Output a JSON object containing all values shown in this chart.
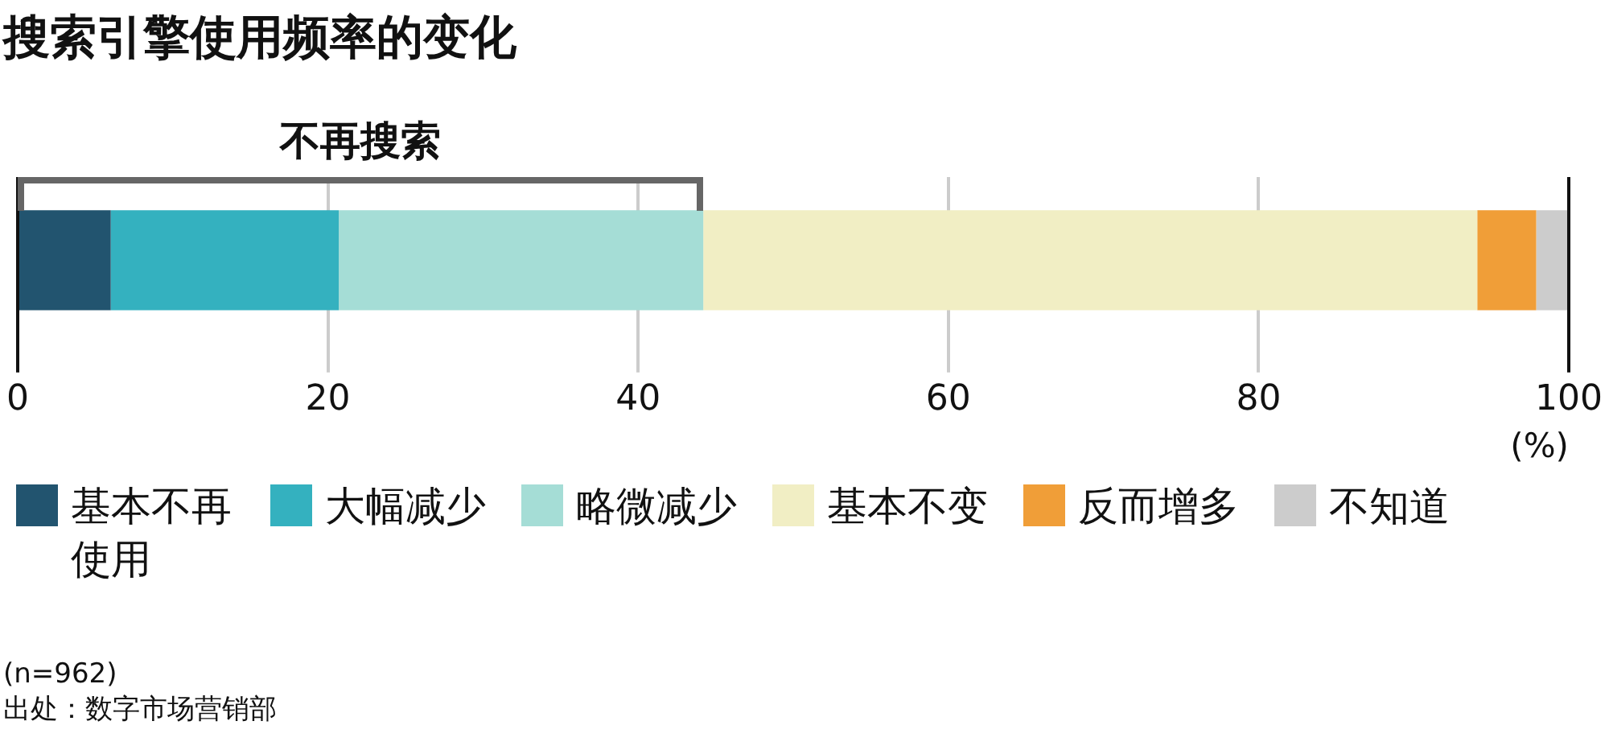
{
  "chart_data": {
    "type": "bar",
    "orientation": "horizontal",
    "stacked": true,
    "title": "搜索引擎使用频率的变化",
    "xlabel": "(%)",
    "categories": [
      null
    ],
    "series": [
      {
        "name": "基本不再使用",
        "color": "#22546f",
        "values": [
          6.0
        ]
      },
      {
        "name": "大幅减少",
        "color": "#34b1bf",
        "values": [
          14.7
        ]
      },
      {
        "name": "略微减少",
        "color": "#a5ddd6",
        "values": [
          23.5
        ]
      },
      {
        "name": "基本不变",
        "color": "#f1eec4",
        "values": [
          49.9
        ]
      },
      {
        "name": "反而增多",
        "color": "#f09e38",
        "values": [
          3.8
        ]
      },
      {
        "name": "不知道",
        "color": "#cccccc",
        "values": [
          2.1
        ]
      }
    ],
    "xlim": [
      0,
      100
    ],
    "xticks": [
      0,
      20,
      40,
      60,
      80,
      100
    ],
    "grid": "x",
    "tick_labels": "x",
    "legend": "bottom",
    "annotations": [
      "不再搜索",
      "(n=962)",
      "出处：数字市场营销部"
    ]
  }
}
